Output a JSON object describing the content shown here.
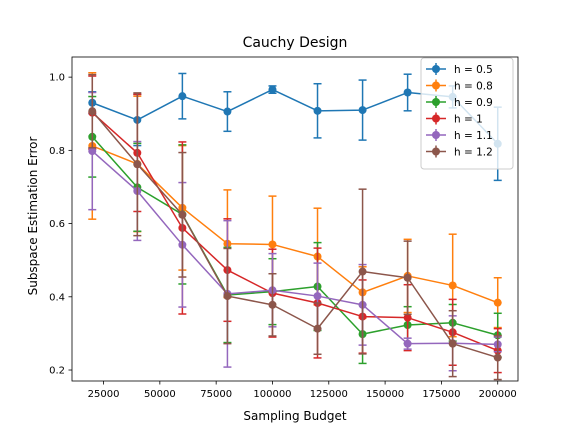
{
  "chart_data": {
    "type": "line",
    "title": "Cauchy Design",
    "xlabel": "Sampling Budget",
    "ylabel": "Subspace Estimation Error",
    "xlim": [
      11000,
      209000
    ],
    "ylim": [
      0.17,
      1.055
    ],
    "xticks": [
      25000,
      50000,
      75000,
      100000,
      125000,
      150000,
      175000,
      200000
    ],
    "yticks": [
      0.2,
      0.4,
      0.6,
      0.8,
      1.0
    ],
    "ytick_labels": [
      "0.2",
      "0.4",
      "0.6",
      "0.8",
      "1.0"
    ],
    "grid": false,
    "legend_position": "top-right",
    "x": [
      20000,
      40000,
      60000,
      80000,
      100000,
      120000,
      140000,
      160000,
      180000,
      200000
    ],
    "series": [
      {
        "name": "h = 0.5",
        "color": "#1f77b4",
        "values": [
          0.93,
          0.883,
          0.948,
          0.906,
          0.966,
          0.908,
          0.91,
          0.958,
          0.946,
          0.818
        ],
        "errors": [
          0.03,
          0.07,
          0.062,
          0.054,
          0.01,
          0.074,
          0.082,
          0.05,
          0.03,
          0.1
        ]
      },
      {
        "name": "h = 0.8",
        "color": "#ff7f0e",
        "values": [
          0.812,
          0.763,
          0.643,
          0.545,
          0.543,
          0.51,
          0.412,
          0.457,
          0.431,
          0.384
        ],
        "errors": [
          0.2,
          0.185,
          0.17,
          0.147,
          0.132,
          0.132,
          0.07,
          0.1,
          0.14,
          0.068
        ]
      },
      {
        "name": "h = 0.9",
        "color": "#2ca02c",
        "values": [
          0.837,
          0.699,
          0.625,
          0.405,
          0.414,
          0.428,
          0.298,
          0.323,
          0.329,
          0.295
        ],
        "errors": [
          0.11,
          0.12,
          0.19,
          0.13,
          0.09,
          0.12,
          0.08,
          0.05,
          0.05,
          0.06
        ]
      },
      {
        "name": "h = 1",
        "color": "#d62728",
        "values": [
          0.903,
          0.793,
          0.588,
          0.473,
          0.41,
          0.383,
          0.346,
          0.343,
          0.303,
          0.253
        ],
        "errors": [
          0.1,
          0.16,
          0.235,
          0.14,
          0.12,
          0.15,
          0.1,
          0.09,
          0.09,
          0.06
        ]
      },
      {
        "name": "h = 1.1",
        "color": "#9467bd",
        "values": [
          0.798,
          0.689,
          0.542,
          0.408,
          0.418,
          0.402,
          0.378,
          0.272,
          0.273,
          0.27
        ],
        "errors": [
          0.16,
          0.135,
          0.17,
          0.2,
          0.1,
          0.09,
          0.11,
          0.015,
          0.075,
          0.02
        ]
      },
      {
        "name": "h = 1.2",
        "color": "#8c564b",
        "values": [
          0.907,
          0.762,
          0.624,
          0.402,
          0.378,
          0.313,
          0.469,
          0.452,
          0.272,
          0.234
        ],
        "errors": [
          0.1,
          0.195,
          0.17,
          0.13,
          0.085,
          0.07,
          0.225,
          0.1,
          0.09,
          0.06
        ]
      }
    ]
  }
}
